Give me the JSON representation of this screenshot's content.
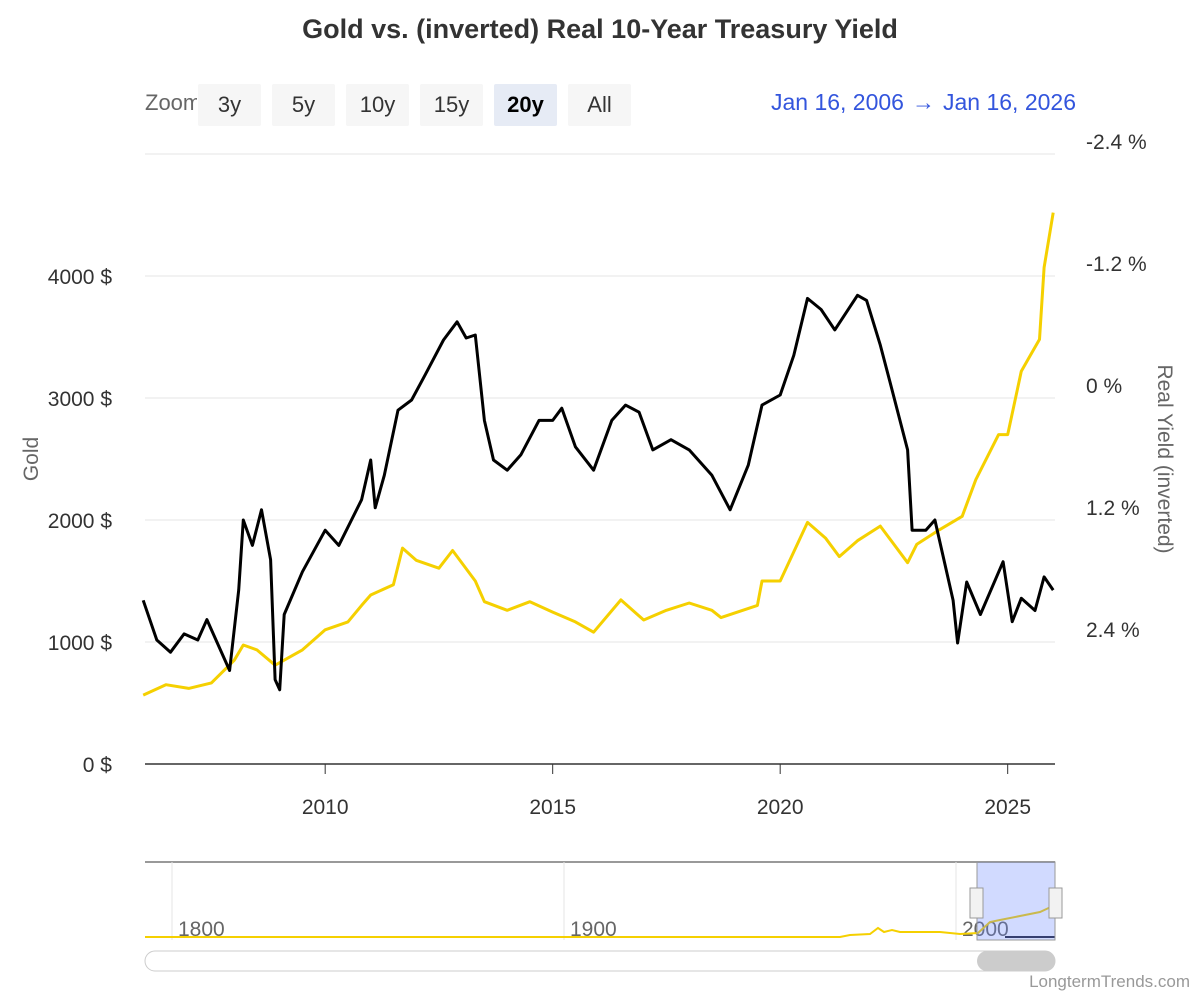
{
  "chart_data": {
    "type": "line",
    "title": "Gold vs. (inverted) Real 10-Year Treasury Yield",
    "xlim": [
      2006.04,
      2026.04
    ],
    "x_ticks": [
      "2010",
      "2015",
      "2020",
      "2025"
    ],
    "y_left": {
      "label": "Gold",
      "range": [
        0,
        5000
      ],
      "ticks": [
        "0 $",
        "1000 $",
        "2000 $",
        "3000 $",
        "4000 $"
      ]
    },
    "y_right": {
      "label": "Real Yield (inverted)",
      "inverted": true,
      "range": [
        -2.4,
        3.6
      ],
      "ticks": [
        "-2.4 %",
        "-1.2 %",
        "0 %",
        "1.2 %",
        "2.4 %"
      ]
    },
    "grid": true,
    "series": [
      {
        "name": "Gold",
        "axis": "left",
        "color": "#f5d000",
        "x": [
          2006.0,
          2006.5,
          2007.0,
          2007.5,
          2008.0,
          2008.2,
          2008.5,
          2008.9,
          2009.5,
          2010.0,
          2010.5,
          2010.8,
          2011.0,
          2011.5,
          2011.7,
          2012.0,
          2012.5,
          2012.8,
          2013.3,
          2013.5,
          2014.0,
          2014.5,
          2015.0,
          2015.5,
          2015.9,
          2016.5,
          2017.0,
          2017.5,
          2018.0,
          2018.5,
          2018.7,
          2019.5,
          2019.6,
          2020.0,
          2020.6,
          2021.0,
          2021.3,
          2021.7,
          2022.2,
          2022.8,
          2023.0,
          2023.5,
          2024.0,
          2024.3,
          2024.8,
          2025.0,
          2025.3,
          2025.5,
          2025.7,
          2025.8,
          2026.0
        ],
        "values": [
          565,
          650,
          620,
          665,
          850,
          975,
          935,
          810,
          935,
          1100,
          1165,
          1300,
          1385,
          1470,
          1770,
          1670,
          1605,
          1750,
          1500,
          1330,
          1260,
          1330,
          1245,
          1165,
          1080,
          1345,
          1180,
          1260,
          1320,
          1260,
          1200,
          1300,
          1500,
          1500,
          1980,
          1850,
          1700,
          1830,
          1950,
          1650,
          1800,
          1920,
          2030,
          2330,
          2700,
          2700,
          3220,
          3350,
          3480,
          4070,
          4520
        ]
      },
      {
        "name": "Real Yield (inverted)",
        "axis": "right",
        "color": "#000000",
        "x": [
          2006.0,
          2006.3,
          2006.6,
          2006.9,
          2007.2,
          2007.4,
          2007.6,
          2007.9,
          2008.1,
          2008.2,
          2008.4,
          2008.6,
          2008.8,
          2008.9,
          2009.0,
          2009.1,
          2009.5,
          2010.0,
          2010.3,
          2010.8,
          2011.0,
          2011.1,
          2011.3,
          2011.6,
          2011.9,
          2012.2,
          2012.6,
          2012.9,
          2013.1,
          2013.3,
          2013.5,
          2013.7,
          2014.0,
          2014.3,
          2014.7,
          2015.0,
          2015.2,
          2015.5,
          2015.9,
          2016.3,
          2016.6,
          2016.9,
          2017.2,
          2017.6,
          2018.0,
          2018.5,
          2018.9,
          2019.3,
          2019.6,
          2020.0,
          2020.3,
          2020.6,
          2020.9,
          2021.2,
          2021.7,
          2021.9,
          2022.2,
          2022.4,
          2022.8,
          2022.9,
          2023.2,
          2023.4,
          2023.8,
          2023.9,
          2024.1,
          2024.4,
          2024.9,
          2025.1,
          2025.3,
          2025.6,
          2025.8,
          2026.0
        ],
        "values": [
          1.99,
          2.38,
          2.5,
          2.32,
          2.38,
          2.18,
          2.38,
          2.68,
          1.89,
          1.2,
          1.45,
          1.1,
          1.59,
          2.77,
          2.87,
          2.13,
          1.71,
          1.3,
          1.45,
          1.0,
          0.61,
          1.08,
          0.76,
          0.12,
          0.02,
          -0.23,
          -0.57,
          -0.75,
          -0.59,
          -0.62,
          0.22,
          0.61,
          0.71,
          0.56,
          0.22,
          0.22,
          0.1,
          0.48,
          0.71,
          0.22,
          0.07,
          0.14,
          0.51,
          0.41,
          0.51,
          0.76,
          1.1,
          0.66,
          0.07,
          -0.03,
          -0.42,
          -0.98,
          -0.87,
          -0.67,
          -1.01,
          -0.96,
          -0.52,
          -0.18,
          0.51,
          1.3,
          1.3,
          1.2,
          1.99,
          2.41,
          1.81,
          2.13,
          1.61,
          2.2,
          1.97,
          2.09,
          1.76,
          1.89
        ]
      }
    ]
  },
  "zoom": {
    "label": "Zoom",
    "buttons": [
      "3y",
      "5y",
      "10y",
      "15y",
      "20y",
      "All"
    ],
    "selected": "20y"
  },
  "range": {
    "from": "Jan 16, 2006",
    "arrow": "→",
    "to": "Jan 16, 2026"
  },
  "navigator": {
    "ticks": [
      "1800",
      "1900",
      "2000"
    ]
  },
  "credit": "LongtermTrends.com"
}
